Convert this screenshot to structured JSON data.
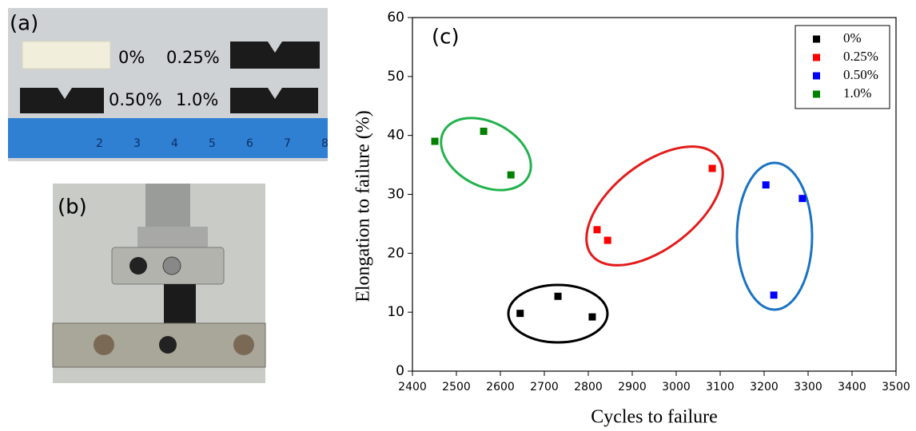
{
  "photo_a": {
    "label": "(a)",
    "samples": [
      "0%",
      "0.25%",
      "0.50%",
      "1.0%"
    ],
    "ruler_labels": [
      "2",
      "3",
      "4",
      "5",
      "6",
      "7",
      "8"
    ]
  },
  "photo_b": {
    "label": "(b)"
  },
  "chart_data": {
    "type": "scatter",
    "panel_label": "(c)",
    "x_label": "Cycles to failure",
    "y_label": "Elongation to failure (%)",
    "xlim": [
      2400,
      3500
    ],
    "xticks": [
      2400,
      2500,
      2600,
      2700,
      2800,
      2900,
      3000,
      3100,
      3200,
      3300,
      3400,
      3500
    ],
    "ylim": [
      0,
      60
    ],
    "yticks": [
      0,
      10,
      20,
      30,
      40,
      50,
      60
    ],
    "legend": "upper right",
    "series": [
      {
        "name": "0%",
        "color": "#000000",
        "x": [
          2645,
          2731,
          2809
        ],
        "values": [
          9.8,
          12.7,
          9.2
        ]
      },
      {
        "name": "0.25%",
        "color": "#ff0000",
        "x": [
          2820,
          2844,
          3082
        ],
        "values": [
          24.0,
          22.2,
          34.4
        ]
      },
      {
        "name": "0.50%",
        "color": "#0000ff",
        "x": [
          3204,
          3222,
          3287
        ],
        "values": [
          31.6,
          12.9,
          29.3
        ]
      },
      {
        "name": "1.0%",
        "color": "#008000",
        "x": [
          2451,
          2562,
          2624
        ],
        "values": [
          39.0,
          40.7,
          33.3
        ]
      }
    ]
  }
}
